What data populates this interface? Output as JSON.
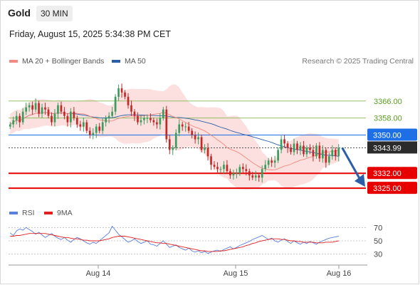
{
  "header": {
    "title": "Gold",
    "timeframe": "30 MIN",
    "datetime": "Friday, August 15, 2025 5:34:38 PM CET"
  },
  "legend": {
    "items": [
      {
        "label": "MA 20 + Bollinger Bands",
        "color": "#f28b82"
      },
      {
        "label": "MA 50",
        "color": "#2c5ea8"
      }
    ],
    "credit": "Research © 2025 Trading Central"
  },
  "rsi_legend": {
    "items": [
      {
        "label": "RSI",
        "color": "#5b7fdc"
      },
      {
        "label": "9MA",
        "color": "#e02020"
      }
    ]
  },
  "chart_data": {
    "type": "candlestick",
    "ylim": [
      3318,
      3380
    ],
    "x_tick_labels": [
      "Aug 14",
      "Aug 15",
      "Aug 16"
    ],
    "levels": [
      {
        "value": 3366.0,
        "label": "3366.00",
        "kind": "resistance",
        "color": "#7cb342"
      },
      {
        "value": 3358.0,
        "label": "3358.00",
        "kind": "resistance",
        "color": "#7cb342"
      },
      {
        "value": 3350.0,
        "label": "3350.00",
        "kind": "pivot",
        "color": "#1e6fe6"
      },
      {
        "value": 3343.99,
        "label": "3343.99",
        "kind": "last",
        "color": "#2b2b2b"
      },
      {
        "value": 3332.0,
        "label": "3332.00",
        "kind": "support",
        "color": "#e60000"
      },
      {
        "value": 3325.0,
        "label": "3325.00",
        "kind": "support",
        "color": "#e60000"
      }
    ],
    "forecast_arrow": {
      "from": 3344,
      "to": 3327
    },
    "closes": [
      3355,
      3357,
      3359,
      3356,
      3361,
      3363,
      3364,
      3362,
      3365,
      3360,
      3363,
      3362,
      3359,
      3356,
      3360,
      3364,
      3361,
      3359,
      3356,
      3361,
      3358,
      3355,
      3354,
      3356,
      3352,
      3350,
      3351,
      3354,
      3352,
      3356,
      3358,
      3359,
      3361,
      3368,
      3372,
      3370,
      3368,
      3364,
      3361,
      3359,
      3356,
      3357,
      3358,
      3358,
      3357,
      3356,
      3355,
      3358,
      3362,
      3348,
      3343,
      3344,
      3351,
      3355,
      3354,
      3354,
      3352,
      3350,
      3348,
      3349,
      3343,
      3344,
      3340,
      3336,
      3335,
      3334,
      3334,
      3336,
      3333,
      3331,
      3332,
      3332,
      3335,
      3334,
      3333,
      3331,
      3330,
      3331,
      3330,
      3334,
      3336,
      3338,
      3337,
      3338,
      3343,
      3348,
      3346,
      3344,
      3342,
      3346,
      3343,
      3345,
      3341,
      3344,
      3343,
      3340,
      3345,
      3339,
      3343,
      3337,
      3340,
      3343,
      3340,
      3344
    ],
    "rsi": {
      "ylim": [
        20,
        80
      ],
      "levels": [
        70,
        50,
        30
      ],
      "rsi": [
        62,
        58,
        65,
        68,
        66,
        70,
        67,
        64,
        60,
        63,
        59,
        55,
        58,
        61,
        57,
        54,
        52,
        55,
        51,
        48,
        52,
        55,
        53,
        50,
        47,
        45,
        48,
        46,
        50,
        54,
        58,
        62,
        72,
        66,
        60,
        56,
        52,
        48,
        50,
        53,
        49,
        46,
        48,
        50,
        45,
        44,
        42,
        46,
        50,
        45,
        40,
        42,
        44,
        40,
        38,
        36,
        39,
        35,
        33,
        35,
        32,
        34,
        31,
        33,
        35,
        36,
        34,
        37,
        39,
        41,
        38,
        40,
        43,
        45,
        47,
        49,
        52,
        54,
        56,
        58,
        55,
        52,
        54,
        50,
        48,
        51,
        53,
        49,
        46,
        50,
        47,
        45,
        48,
        46,
        49,
        47,
        45,
        48,
        50,
        52,
        54,
        55,
        56,
        57
      ],
      "ma9": [
        57,
        57,
        58,
        58,
        59,
        60,
        61,
        61,
        61,
        61,
        61,
        61,
        60,
        59,
        58,
        57,
        56,
        55,
        55,
        54,
        53,
        53,
        52,
        51,
        51,
        50,
        50,
        50,
        50,
        51,
        52,
        53,
        55,
        56,
        57,
        57,
        57,
        56,
        55,
        54,
        53,
        52,
        51,
        50,
        49,
        48,
        47,
        47,
        46,
        46,
        45,
        44,
        43,
        42,
        41,
        40,
        39,
        38,
        37,
        36,
        35,
        35,
        34,
        34,
        34,
        34,
        35,
        35,
        36,
        37,
        38,
        39,
        40,
        41,
        43,
        44,
        46,
        47,
        49,
        50,
        51,
        52,
        53,
        53,
        53,
        52,
        52,
        51,
        50,
        50,
        49,
        49,
        48,
        48,
        48,
        48,
        47,
        47,
        47,
        48,
        48,
        48,
        49,
        50
      ]
    }
  }
}
